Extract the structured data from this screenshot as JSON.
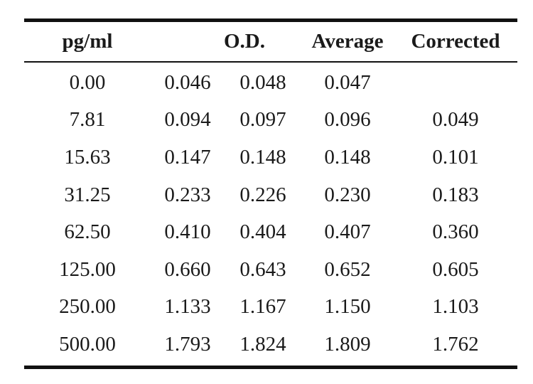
{
  "table": {
    "headers": {
      "conc": "pg/ml",
      "od": "O.D.",
      "average": "Average",
      "corrected": "Corrected"
    },
    "rows": [
      {
        "conc": "0.00",
        "od1": "0.046",
        "od2": "0.048",
        "average": "0.047",
        "corrected": ""
      },
      {
        "conc": "7.81",
        "od1": "0.094",
        "od2": "0.097",
        "average": "0.096",
        "corrected": "0.049"
      },
      {
        "conc": "15.63",
        "od1": "0.147",
        "od2": "0.148",
        "average": "0.148",
        "corrected": "0.101"
      },
      {
        "conc": "31.25",
        "od1": "0.233",
        "od2": "0.226",
        "average": "0.230",
        "corrected": "0.183"
      },
      {
        "conc": "62.50",
        "od1": "0.410",
        "od2": "0.404",
        "average": "0.407",
        "corrected": "0.360"
      },
      {
        "conc": "125.00",
        "od1": "0.660",
        "od2": "0.643",
        "average": "0.652",
        "corrected": "0.605"
      },
      {
        "conc": "250.00",
        "od1": "1.133",
        "od2": "1.167",
        "average": "1.150",
        "corrected": "1.103"
      },
      {
        "conc": "500.00",
        "od1": "1.793",
        "od2": "1.824",
        "average": "1.809",
        "corrected": "1.762"
      }
    ]
  }
}
